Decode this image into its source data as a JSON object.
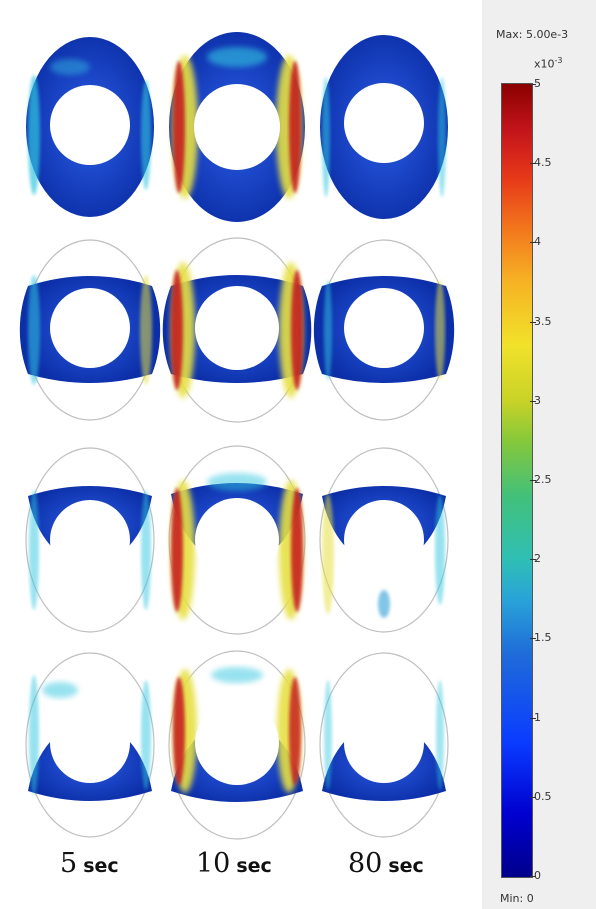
{
  "columns": [
    {
      "num": "5",
      "unit": "sec"
    },
    {
      "num": "10",
      "unit": "sec"
    },
    {
      "num": "80",
      "unit": "sec"
    }
  ],
  "legend": {
    "max_label": "Max: 5.00e-3",
    "min_label": "Min: 0",
    "exponent_base": "x10",
    "exponent_power": "-3",
    "ticks": [
      "0",
      "0.5",
      "1",
      "1.5",
      "2",
      "2.5",
      "3",
      "3.5",
      "4",
      "4.5",
      "5"
    ]
  },
  "colors": {
    "deep_blue": "#0b2a9e",
    "mid_blue": "#1e4fd8",
    "cyan": "#33c6e0",
    "yellow": "#e6e043",
    "orange": "#f08a22",
    "red": "#c4151b",
    "outline": "#bfbfbf"
  }
}
